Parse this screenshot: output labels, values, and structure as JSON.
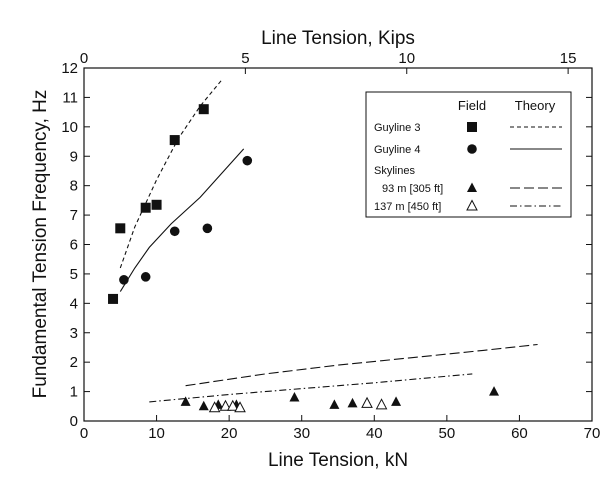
{
  "chart_data": {
    "type": "scatter",
    "title": "",
    "xlabel": "Line Tension, kN",
    "x2label": "Line Tension, Kips",
    "ylabel": "Fundamental Tension Frequency, Hz",
    "xlim": [
      0,
      70
    ],
    "x2lim": [
      0,
      15.74
    ],
    "ylim": [
      0,
      12
    ],
    "x_ticks": [
      "0",
      "10",
      "20",
      "30",
      "40",
      "50",
      "60",
      "70"
    ],
    "x2_ticks": [
      "0",
      "5",
      "10",
      "15"
    ],
    "y_ticks": [
      "0",
      "1",
      "2",
      "3",
      "4",
      "5",
      "6",
      "7",
      "8",
      "9",
      "10",
      "11",
      "12"
    ],
    "grid": false,
    "legend_position": "top-right",
    "legend_headers": {
      "field": "Field",
      "theory": "Theory"
    },
    "legend_group_label": "Skylines",
    "series": [
      {
        "name": "Guyline 3",
        "marker": "filled-square",
        "theory_style": "short-dash",
        "points": [
          [
            4,
            4.15
          ],
          [
            5,
            6.55
          ],
          [
            8.5,
            7.25
          ],
          [
            10,
            7.35
          ],
          [
            12.5,
            9.55
          ],
          [
            16.5,
            10.6
          ]
        ],
        "theory": [
          [
            5,
            5.2
          ],
          [
            7,
            6.6
          ],
          [
            10,
            8.2
          ],
          [
            13,
            9.6
          ],
          [
            16,
            10.7
          ],
          [
            19,
            11.6
          ]
        ]
      },
      {
        "name": "Guyline 4",
        "marker": "filled-circle",
        "theory_style": "solid",
        "points": [
          [
            5.5,
            4.8
          ],
          [
            8.5,
            4.9
          ],
          [
            12.5,
            6.45
          ],
          [
            17,
            6.55
          ],
          [
            22.5,
            8.85
          ]
        ],
        "theory": [
          [
            5,
            4.4
          ],
          [
            7,
            5.2
          ],
          [
            9,
            5.9
          ],
          [
            12,
            6.7
          ],
          [
            16,
            7.6
          ],
          [
            22,
            9.25
          ]
        ]
      },
      {
        "name": "93 m [305 ft]",
        "marker": "filled-triangle",
        "theory_style": "long-dash",
        "points": [
          [
            14,
            0.65
          ],
          [
            16.5,
            0.5
          ],
          [
            18.5,
            0.55
          ],
          [
            21,
            0.55
          ],
          [
            29,
            0.8
          ],
          [
            34.5,
            0.55
          ],
          [
            37,
            0.6
          ],
          [
            43,
            0.65
          ],
          [
            56.5,
            1.0
          ]
        ],
        "theory": [
          [
            14,
            1.2
          ],
          [
            25,
            1.6
          ],
          [
            35,
            1.9
          ],
          [
            45,
            2.15
          ],
          [
            55,
            2.4
          ],
          [
            62.5,
            2.6
          ]
        ]
      },
      {
        "name": "137 m [450 ft]",
        "marker": "open-triangle",
        "theory_style": "dash-dot",
        "points": [
          [
            18,
            0.45
          ],
          [
            19.5,
            0.5
          ],
          [
            20.5,
            0.5
          ],
          [
            21.5,
            0.45
          ],
          [
            39,
            0.6
          ],
          [
            41,
            0.55
          ]
        ],
        "theory": [
          [
            9,
            0.65
          ],
          [
            20,
            0.9
          ],
          [
            30,
            1.1
          ],
          [
            40,
            1.3
          ],
          [
            53.5,
            1.6
          ]
        ]
      }
    ]
  }
}
